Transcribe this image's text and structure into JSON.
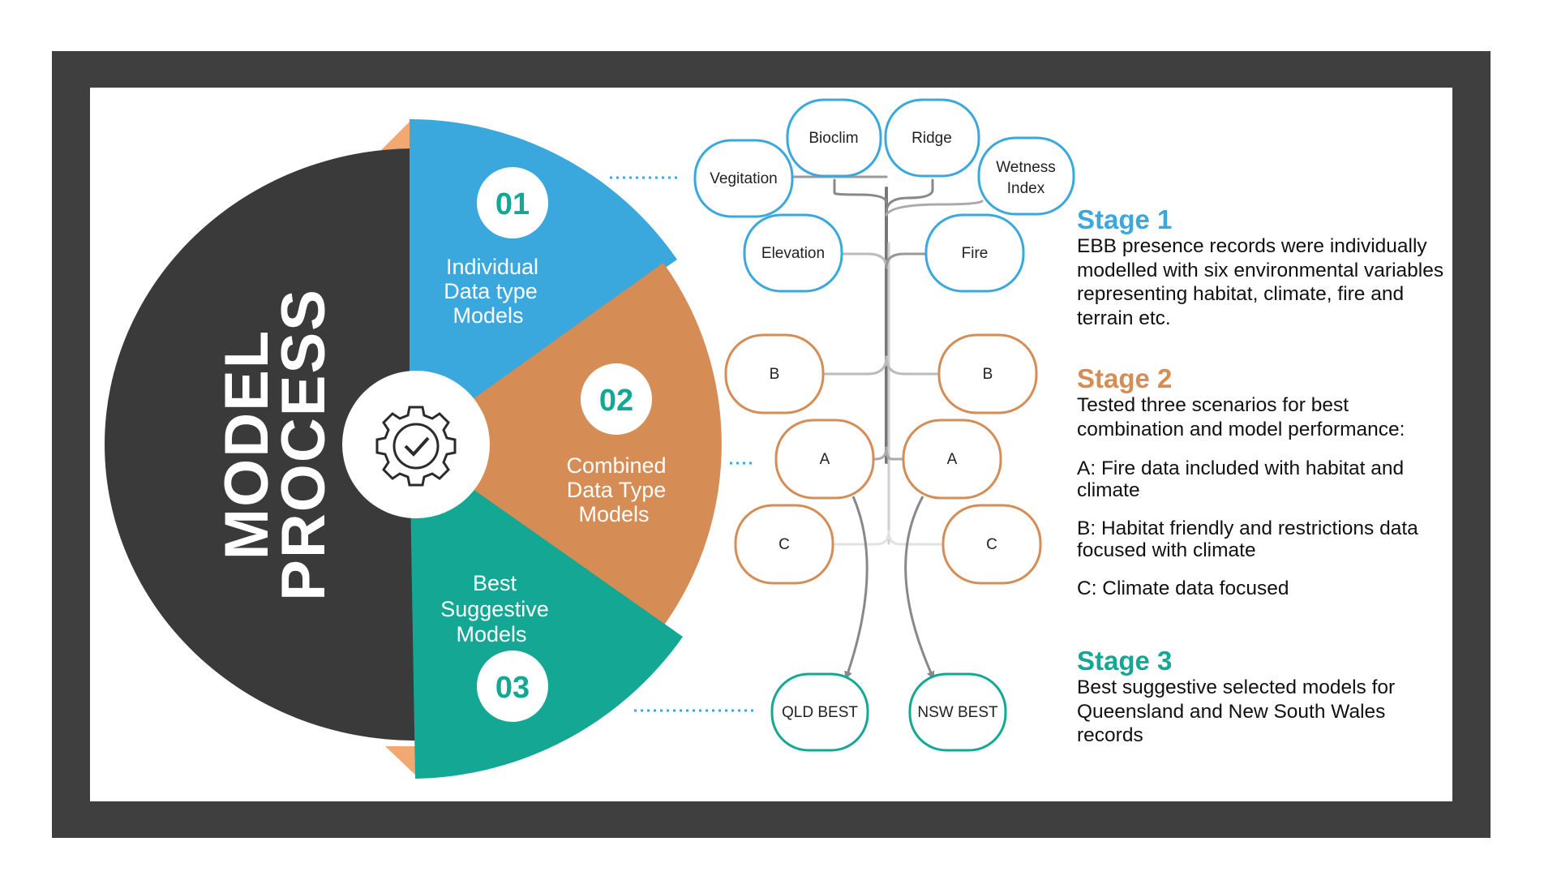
{
  "title": {
    "line1": "MODEL",
    "line2": "PROCESS"
  },
  "segments": [
    {
      "number": "01",
      "lines": [
        "Individual",
        "Data type",
        "Models"
      ]
    },
    {
      "number": "02",
      "lines": [
        "Combined",
        "Data Type",
        "Models"
      ]
    },
    {
      "number": "03",
      "lines": [
        "Best",
        "Suggestive",
        "Models"
      ]
    }
  ],
  "center_icon": "gear-check-icon",
  "nodes": {
    "vegitation": "Vegitation",
    "bioclim": "Bioclim",
    "ridge": "Ridge",
    "wetness": [
      "Wetness",
      "Index"
    ],
    "elevation": "Elevation",
    "fire": "Fire",
    "b_left": "B",
    "b_right": "B",
    "a_left": "A",
    "a_right": "A",
    "c_left": "C",
    "c_right": "C",
    "qld_best": "QLD BEST",
    "nsw_best": "NSW BEST"
  },
  "stages": {
    "s1": {
      "title": "Stage 1",
      "text": "EBB presence records were individually modelled with six environmental variables representing habitat, climate, fire and terrain etc."
    },
    "s2": {
      "title": "Stage 2",
      "text": "Tested three scenarios for best combination and model performance:",
      "a": "A: Fire data included with habitat and climate",
      "b": "B: Habitat friendly and restrictions data focused with climate",
      "c": "C: Climate data focused"
    },
    "s3": {
      "title": "Stage 3",
      "text": "Best suggestive selected models for Queensland and New South Wales records"
    }
  },
  "colors": {
    "frame": "#3f3f3f",
    "dark": "#3a3a3a",
    "blue": "#3aa8dd",
    "orange": "#d58c55",
    "teal": "#14a894",
    "peach": "#f3a872"
  }
}
